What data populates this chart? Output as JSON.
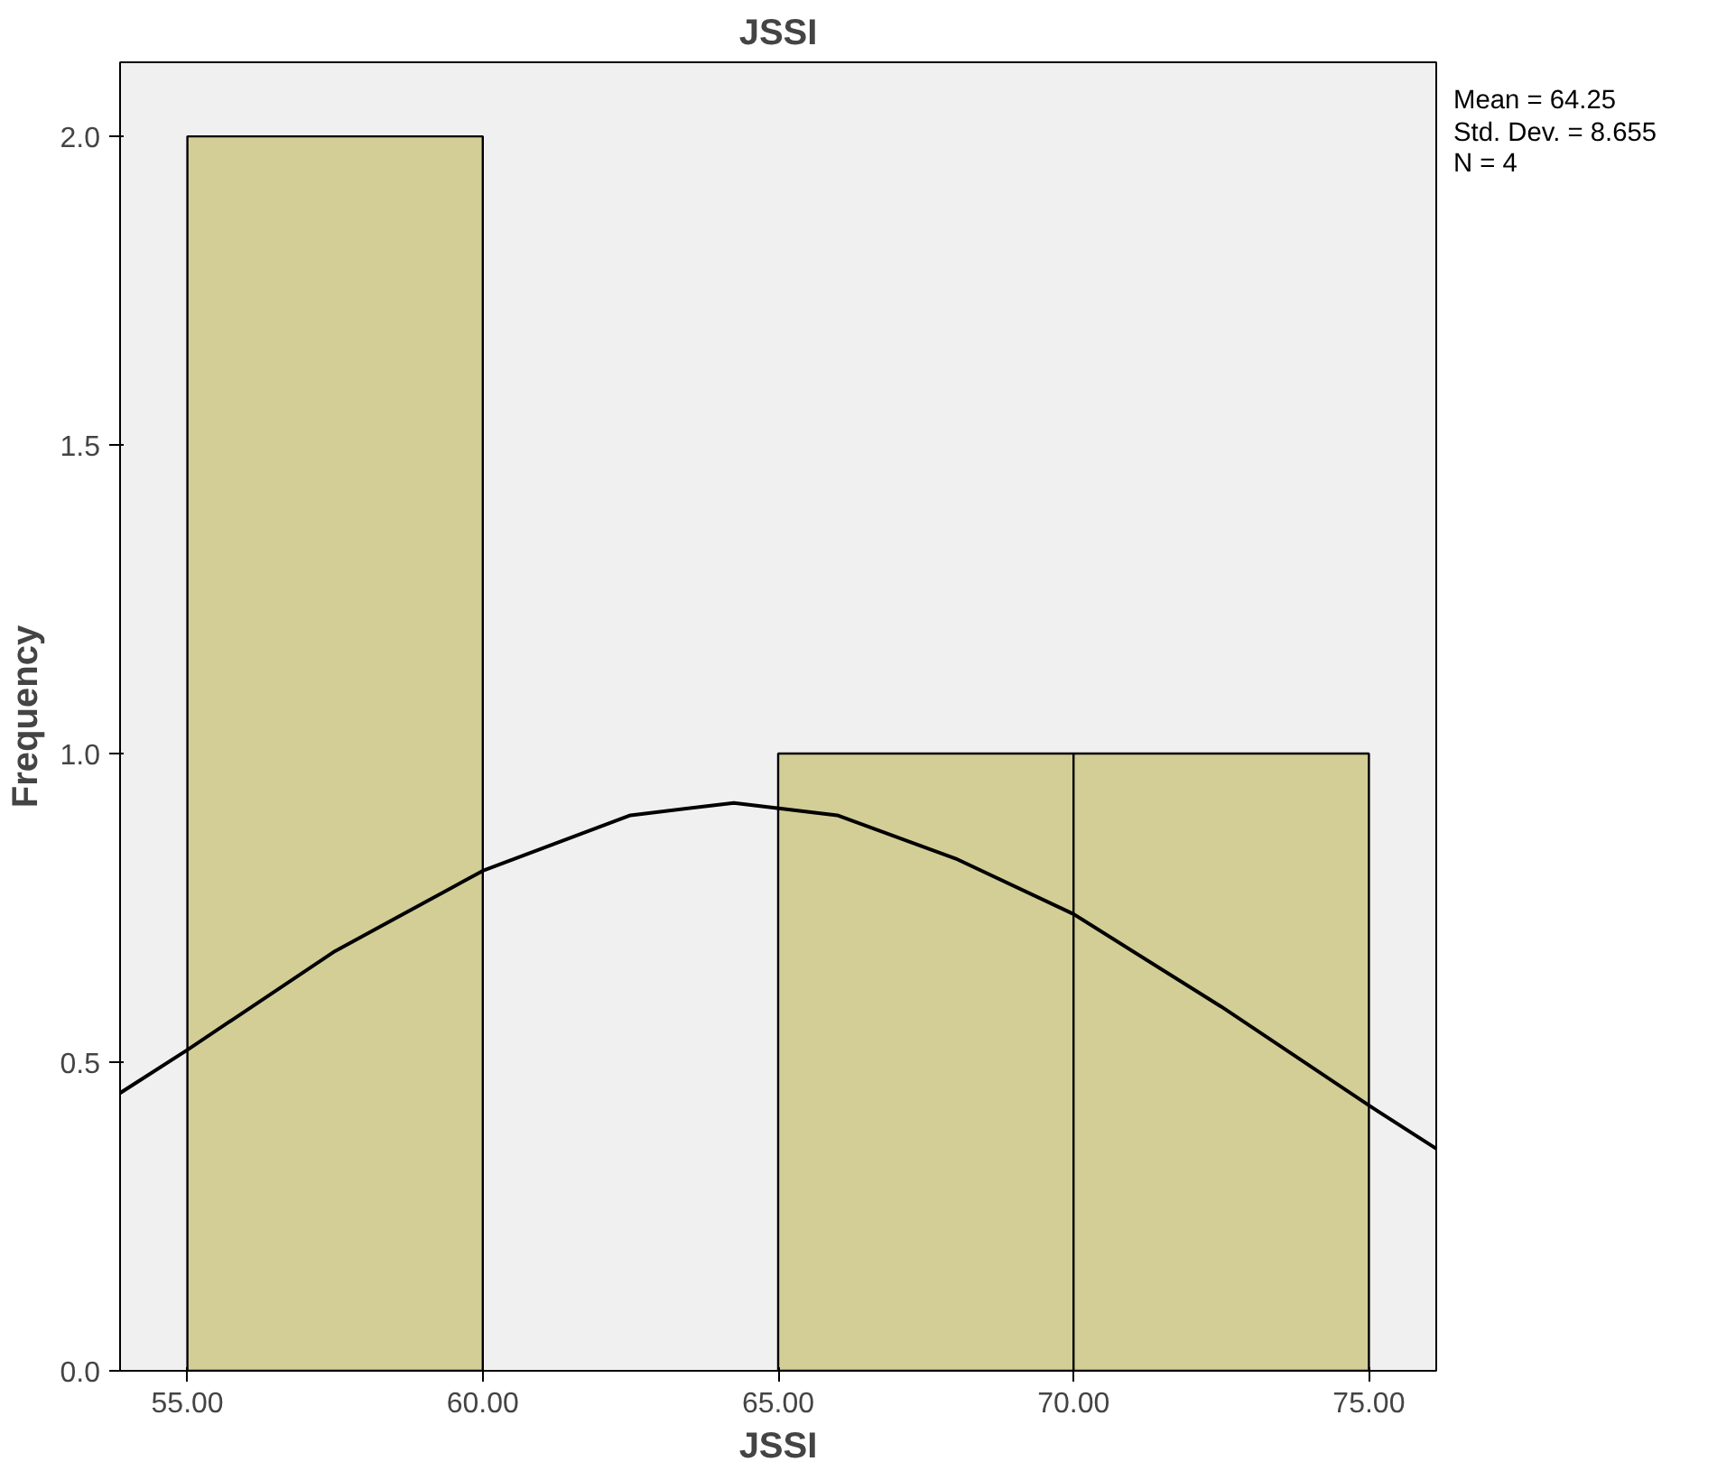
{
  "chart_data": {
    "type": "histogram",
    "title": "JSSI",
    "xlabel": "JSSI",
    "ylabel": "Frequency",
    "bins": [
      55,
      60,
      65,
      70,
      75
    ],
    "values": [
      2,
      0,
      1,
      1
    ],
    "color": "#d3ce96",
    "series": [
      {
        "type": "line",
        "color": "#000000",
        "x": [
          53.86,
          55,
          57.5,
          60,
          62.5,
          64.25,
          66,
          68,
          70,
          72.5,
          75,
          76.14
        ],
        "values": [
          0.45,
          0.52,
          0.68,
          0.81,
          0.9,
          0.92,
          0.9,
          0.83,
          0.74,
          0.59,
          0.43,
          0.36
        ]
      }
    ],
    "xlim": [
      53.86,
      76.14
    ],
    "ylim": [
      0,
      2.12
    ],
    "xticks": [
      {
        "value": 55,
        "label": "55.00"
      },
      {
        "value": 60,
        "label": "60.00"
      },
      {
        "value": 65,
        "label": "65.00"
      },
      {
        "value": 70,
        "label": "70.00"
      },
      {
        "value": 75,
        "label": "75.00"
      }
    ],
    "yticks": [
      {
        "value": 0,
        "label": "0.0"
      },
      {
        "value": 0.5,
        "label": "0.5"
      },
      {
        "value": 1,
        "label": "1.0"
      },
      {
        "value": 1.5,
        "label": "1.5"
      },
      {
        "value": 2,
        "label": "2.0"
      }
    ],
    "annotations": [
      "Mean = 64.25",
      "Std. Dev. = 8.655",
      "N = 4"
    ]
  }
}
